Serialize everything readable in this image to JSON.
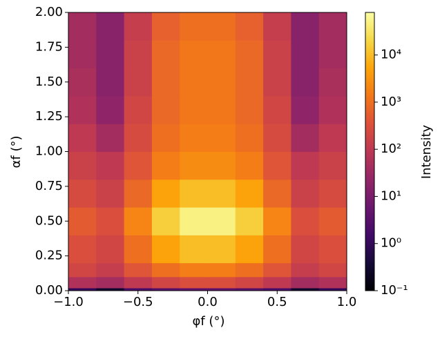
{
  "chart_data": {
    "type": "heatmap",
    "xlabel": "φf (°)",
    "ylabel": "αf (°)",
    "colorbar_label": "Intensity",
    "colormap": "inferno",
    "zscale": "log",
    "zlim": [
      0.1,
      80000
    ],
    "zticks": [
      {
        "value": 0.1,
        "label": "10⁻¹"
      },
      {
        "value": 1,
        "label": "10⁰"
      },
      {
        "value": 10,
        "label": "10¹"
      },
      {
        "value": 100,
        "label": "10²"
      },
      {
        "value": 1000,
        "label": "10³"
      },
      {
        "value": 10000,
        "label": "10⁴"
      }
    ],
    "xlim": [
      -1,
      1
    ],
    "ylim": [
      0,
      2
    ],
    "xticks": [
      {
        "value": -1,
        "label": "−1.0"
      },
      {
        "value": -0.5,
        "label": "−0.5"
      },
      {
        "value": 0,
        "label": "0.0"
      },
      {
        "value": 0.5,
        "label": "0.5"
      },
      {
        "value": 1,
        "label": "1.0"
      }
    ],
    "yticks": [
      {
        "value": 0,
        "label": "0.00"
      },
      {
        "value": 0.25,
        "label": "0.25"
      },
      {
        "value": 0.5,
        "label": "0.50"
      },
      {
        "value": 0.75,
        "label": "0.75"
      },
      {
        "value": 1,
        "label": "1.00"
      },
      {
        "value": 1.25,
        "label": "1.25"
      },
      {
        "value": 1.5,
        "label": "1.50"
      },
      {
        "value": 1.75,
        "label": "1.75"
      },
      {
        "value": 2,
        "label": "2.00"
      }
    ],
    "xbins": [
      -1,
      -0.8,
      -0.6,
      -0.4,
      -0.2,
      0,
      0.2,
      0.4,
      0.6,
      0.8,
      1
    ],
    "ybins": [
      0,
      0.02,
      0.1,
      0.2,
      0.4,
      0.6,
      0.8,
      1.0,
      1.2,
      1.4,
      1.6,
      1.8,
      2.0
    ],
    "values": [
      [
        1,
        0.3,
        2,
        3,
        4,
        4,
        3,
        2,
        0.3,
        1
      ],
      [
        60,
        40,
        100,
        200,
        300,
        300,
        200,
        100,
        40,
        60
      ],
      [
        200,
        130,
        400,
        1000,
        1600,
        1600,
        1000,
        400,
        130,
        200
      ],
      [
        300,
        200,
        1000,
        5000,
        10000,
        10000,
        5000,
        1000,
        200,
        300
      ],
      [
        500,
        300,
        2000,
        16000,
        50000,
        50000,
        16000,
        2000,
        300,
        500
      ],
      [
        250,
        160,
        800,
        5000,
        10000,
        10000,
        5000,
        800,
        160,
        250
      ],
      [
        160,
        100,
        400,
        1600,
        2500,
        2500,
        1600,
        400,
        100,
        160
      ],
      [
        100,
        40,
        250,
        1000,
        1600,
        1600,
        1000,
        250,
        40,
        100
      ],
      [
        60,
        20,
        200,
        800,
        1300,
        1300,
        800,
        200,
        20,
        60
      ],
      [
        50,
        16,
        160,
        800,
        1300,
        1300,
        800,
        160,
        16,
        50
      ],
      [
        40,
        16,
        160,
        800,
        1300,
        1300,
        800,
        160,
        16,
        40
      ],
      [
        40,
        16,
        130,
        600,
        1000,
        1000,
        600,
        130,
        16,
        40
      ]
    ]
  }
}
